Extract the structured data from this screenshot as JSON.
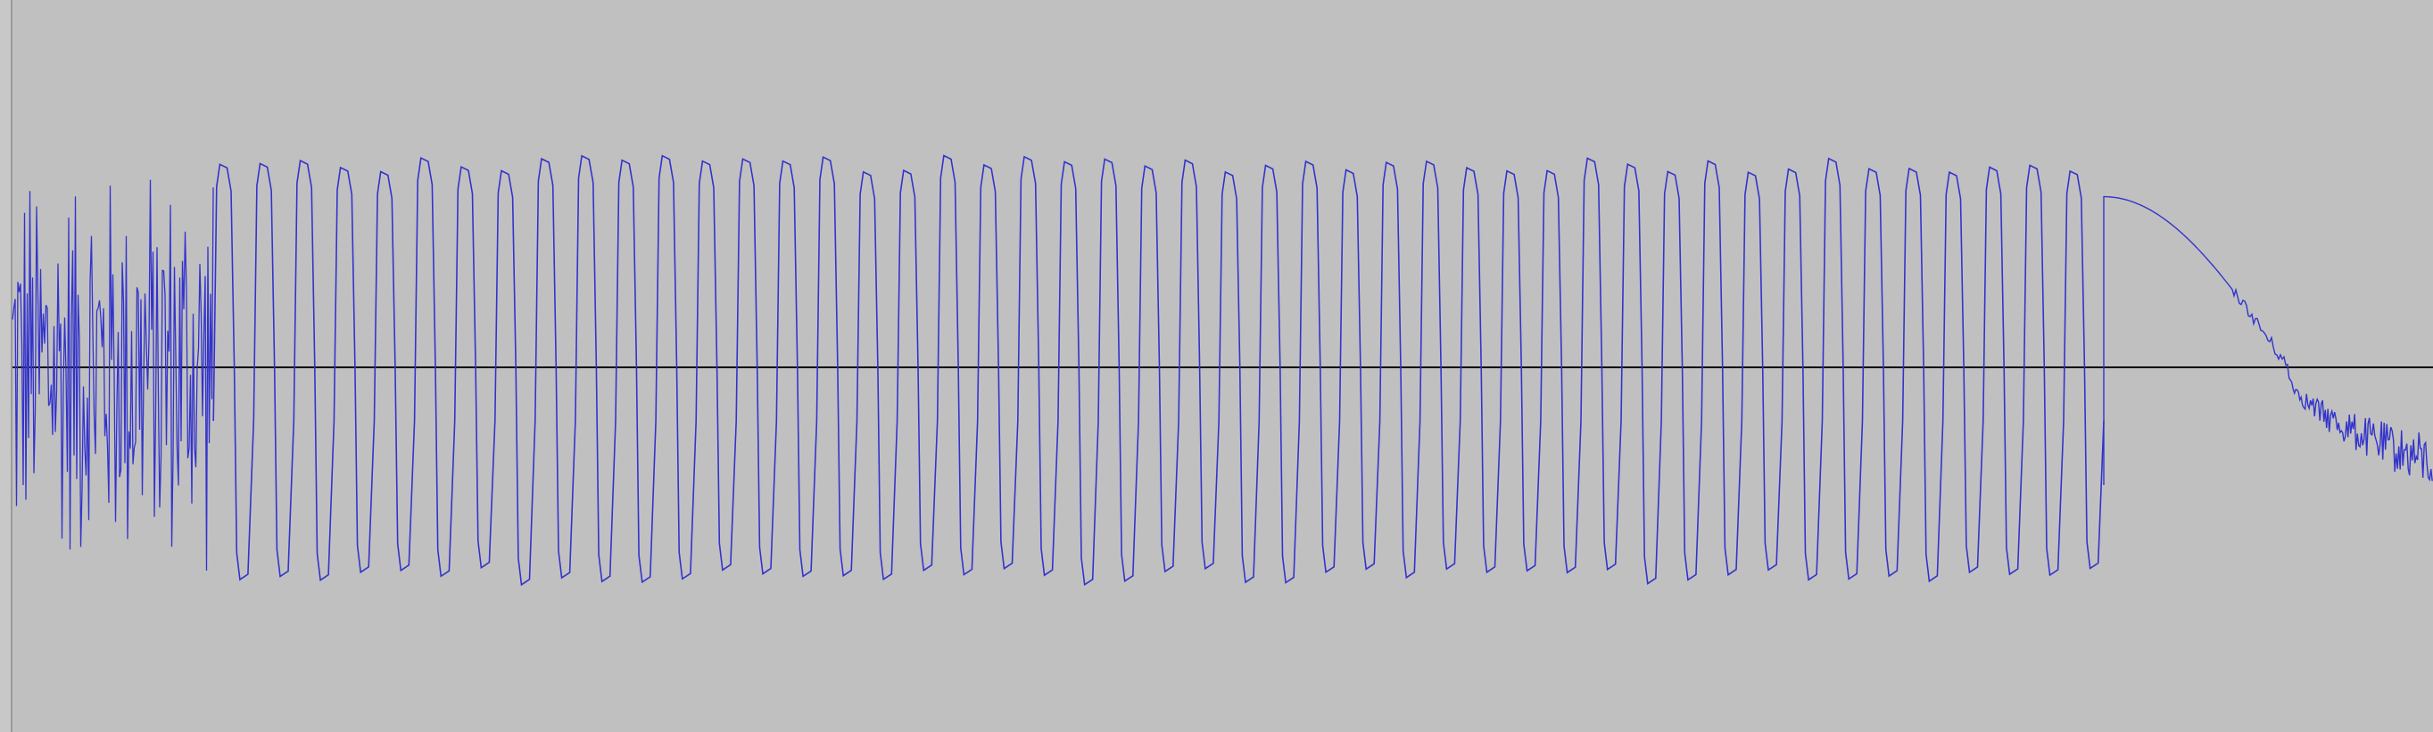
{
  "colors": {
    "background": "#c0c0c0",
    "waveform": "#3333cc",
    "zero_line": "#000000",
    "left_edge": "#c8c8c8"
  },
  "waveform": {
    "zero_level": 0.0,
    "amplitude_range": [
      -1.0,
      1.0
    ],
    "noise_burst": {
      "start": 0.0,
      "end": 0.083,
      "peak": 0.76
    },
    "clean_cycles": {
      "start": 0.083,
      "end": 0.864,
      "count": 47,
      "positive_level": 0.72,
      "negative_level": -0.74
    },
    "decay_tail": {
      "start": 0.864,
      "zero_cross": 0.94,
      "start_level": 0.58,
      "end_noise_level": -0.38
    }
  }
}
